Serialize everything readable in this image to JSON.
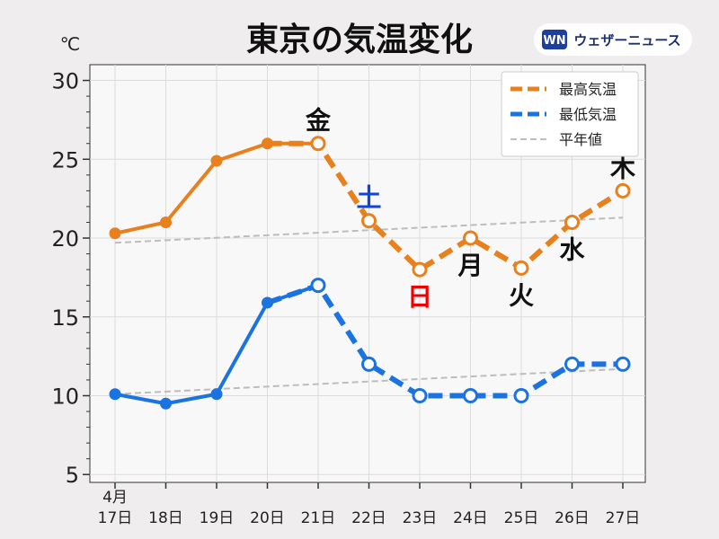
{
  "title": "東京の気温変化",
  "unit": "℃",
  "brand": {
    "mark": "WN",
    "name": "ウェザーニュース"
  },
  "colors": {
    "high": "#e8801e",
    "low": "#1a73e0",
    "normal": "#bdbdbd",
    "sat": "#1144dd",
    "sun": "#ee0000",
    "weekday": "#111111"
  },
  "chart_data": {
    "type": "line",
    "title": "東京の気温変化",
    "ylabel": "℃",
    "ylim": [
      4.5,
      31
    ],
    "yticks": [
      5,
      10,
      15,
      20,
      25,
      30
    ],
    "x_month_label": "4月",
    "categories": [
      "17日",
      "18日",
      "19日",
      "20日",
      "21日",
      "22日",
      "23日",
      "24日",
      "25日",
      "26日",
      "27日"
    ],
    "forecast_start_index": 4,
    "day_labels": [
      {
        "index": 4,
        "text": "金",
        "color": "weekday",
        "position": "above-high"
      },
      {
        "index": 5,
        "text": "土",
        "color": "sat",
        "position": "above-high"
      },
      {
        "index": 6,
        "text": "日",
        "color": "sun",
        "position": "below-high"
      },
      {
        "index": 7,
        "text": "月",
        "color": "weekday",
        "position": "below-high"
      },
      {
        "index": 8,
        "text": "火",
        "color": "weekday",
        "position": "below-high"
      },
      {
        "index": 9,
        "text": "水",
        "color": "weekday",
        "position": "below-high"
      },
      {
        "index": 10,
        "text": "木",
        "color": "weekday",
        "position": "above-high"
      }
    ],
    "series": [
      {
        "name": "最高気温",
        "values": [
          20.3,
          21.0,
          24.9,
          26.0,
          26.0,
          21.1,
          18.0,
          20.0,
          18.1,
          21.0,
          23.0
        ]
      },
      {
        "name": "最低気温",
        "values": [
          10.1,
          9.5,
          10.1,
          15.9,
          17.0,
          12.0,
          10.0,
          10.0,
          10.0,
          12.0,
          12.0
        ]
      },
      {
        "name": "平年値",
        "upper": [
          19.7,
          21.3
        ],
        "lower": [
          10.1,
          11.7
        ]
      }
    ],
    "legend": {
      "placement": "top-right",
      "entries": [
        "最高気温",
        "最低気温",
        "平年値"
      ]
    },
    "grid": true
  }
}
